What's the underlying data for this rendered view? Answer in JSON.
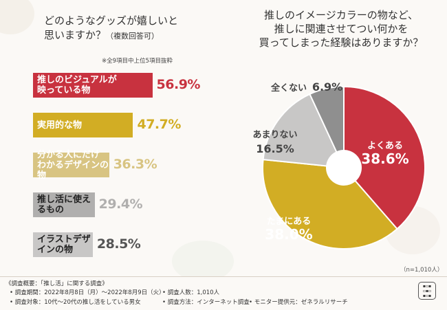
{
  "question_left": {
    "line1": "どのようなグッズが嬉しいと",
    "line2": "思いますか？",
    "line2_small": "（複数回答可）"
  },
  "note": "※全9項目中上位5項目抜粋",
  "question_right": {
    "line1": "推しのイメージカラーの物など、",
    "line2": "推しに関連させてつい何かを",
    "line3": "買ってしまった経験はありますか？"
  },
  "sample_note": "（n=1,010人）",
  "colors": {
    "red": "#c8323f",
    "gold": "#d2ad24",
    "light_gold": "#d8c482",
    "gray": "#b0afae",
    "light_gray": "#c8c7c6",
    "dark_gray": "#8f8f8f"
  },
  "chart_data": [
    {
      "type": "bar",
      "categories": [
        "推しのビジュアルが\n映っている物",
        "実用的な物",
        "分かる人にだけ\nわかるデザインの物",
        "推し活に使えるもの",
        "イラストデザインの物"
      ],
      "values": [
        56.9,
        47.7,
        36.3,
        29.4,
        28.5
      ],
      "value_labels": [
        "56.9%",
        "47.7%",
        "36.3%",
        "29.4%",
        "28.5%"
      ]
    },
    {
      "type": "pie",
      "categories": [
        "よくある",
        "たまにある",
        "あまりない",
        "全くない"
      ],
      "values": [
        38.6,
        38.0,
        16.5,
        6.9
      ],
      "value_labels": [
        "38.6%",
        "38.0%",
        "16.5%",
        "6.9%"
      ]
    }
  ],
  "footer": {
    "title": "《調査概要：「推し活」に関する調査》",
    "period": "• 調査期間：2022年8月8日（月）～2022年8月9日（火）",
    "target": "• 調査対象：10代～20代の推し活をしている男女",
    "count": "• 調査人数：1,010人",
    "method": "• 調査方法：インターネット調査",
    "provider": "• モニター提供元：ゼネラルリサーチ"
  }
}
